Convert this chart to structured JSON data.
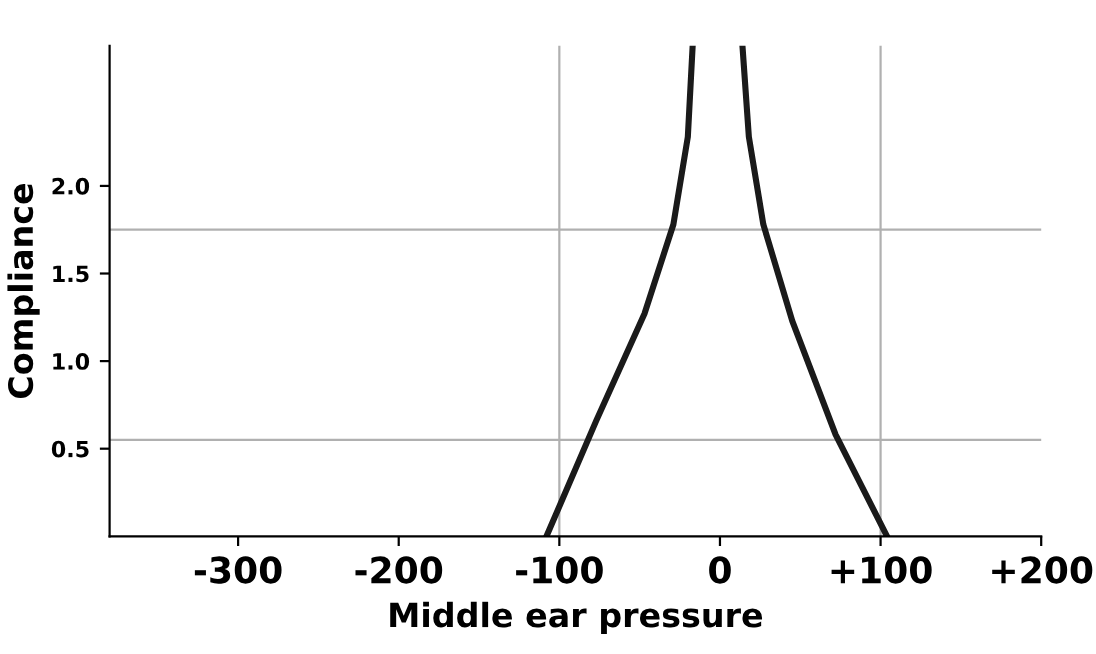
{
  "chart_data": {
    "type": "line",
    "xlabel": "Middle ear pressure",
    "ylabel": "Compliance",
    "xlim": [
      -380,
      200
    ],
    "ylim": [
      0,
      2.8
    ],
    "xticks": [
      {
        "value": -300,
        "label": "-300"
      },
      {
        "value": -200,
        "label": "-200"
      },
      {
        "value": -100,
        "label": "-100"
      },
      {
        "value": 0,
        "label": "0"
      },
      {
        "value": 100,
        "label": "+100"
      },
      {
        "value": 200,
        "label": "+200"
      }
    ],
    "yticks": [
      {
        "value": 0.5,
        "label": "0.5"
      },
      {
        "value": 1.0,
        "label": "1.0"
      },
      {
        "value": 1.5,
        "label": "1.5"
      },
      {
        "value": 2.0,
        "label": "2.0"
      }
    ],
    "series": [
      {
        "color": "#1a1a1a",
        "x": [
          -108,
          -77,
          -47,
          -29,
          -20,
          -17
        ],
        "values": [
          0,
          0.66,
          1.27,
          1.78,
          2.28,
          2.8
        ]
      },
      {
        "color": "#1a1a1a",
        "x": [
          104,
          72,
          45,
          27,
          18,
          14
        ],
        "values": [
          0,
          0.58,
          1.23,
          1.78,
          2.28,
          2.8
        ]
      }
    ],
    "ref_lines": [
      {
        "axis": "y",
        "value": 1.75,
        "color": "#b0b0b0"
      },
      {
        "axis": "y",
        "value": 0.55,
        "color": "#b0b0b0"
      },
      {
        "axis": "x",
        "value": -100,
        "color": "#b0b0b0"
      },
      {
        "axis": "x",
        "value": 100,
        "color": "#b0b0b0"
      }
    ],
    "grid": false,
    "legend": false,
    "marker": "none",
    "line_style": "solid"
  }
}
